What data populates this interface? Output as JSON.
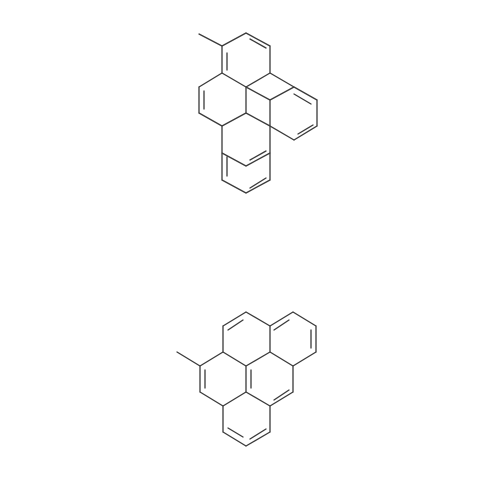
{
  "colors": {
    "background": "#ffffff",
    "bond": "#3a3a3a"
  },
  "molecules": [
    {
      "name": "1-methylpyrene"
    },
    {
      "name": "4-methylpyrene"
    }
  ]
}
